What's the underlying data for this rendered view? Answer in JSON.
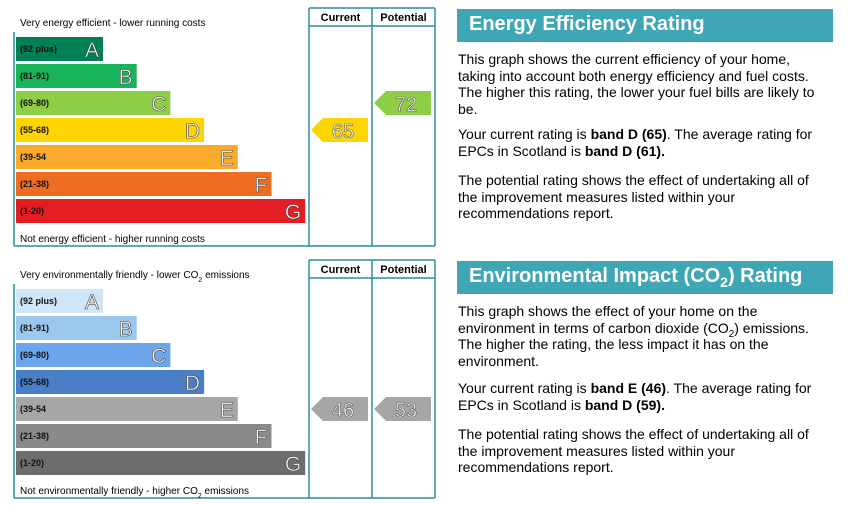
{
  "energy_graph": {
    "header_current": "Current",
    "header_potential": "Potential",
    "top_note": [
      {
        "text": "Very energy efficient - lower running costs"
      }
    ],
    "bottom_note": [
      {
        "text": "Not energy efficient - higher running costs"
      }
    ],
    "bands": [
      {
        "range": "(92 plus)",
        "letter": "A",
        "color": "#008054"
      },
      {
        "range": "(81-91)",
        "letter": "B",
        "color": "#19b459"
      },
      {
        "range": "(69-80)",
        "letter": "C",
        "color": "#8dce46"
      },
      {
        "range": "(55-68)",
        "letter": "D",
        "color": "#ffd500"
      },
      {
        "range": "(39-54",
        "letter": "E",
        "color": "#fcaa2c"
      },
      {
        "range": "(21-38)",
        "letter": "F",
        "color": "#ef6d23"
      },
      {
        "range": "(1-20)",
        "letter": "G",
        "color": "#e31d23"
      }
    ],
    "current": 65,
    "potential": 72,
    "current_color": "#ffd500",
    "potential_color": "#8dce46"
  },
  "environment_graph": {
    "header_current": "Current",
    "header_potential": "Potential",
    "top_note": [
      {
        "text": "Very environmentally friendly - lower CO"
      },
      {
        "text": "2",
        "sub": true
      },
      {
        "text": " emissions"
      }
    ],
    "bottom_note": [
      {
        "text": "Not environmentally friendly - higher CO"
      },
      {
        "text": "2",
        "sub": true
      },
      {
        "text": " emissions"
      }
    ],
    "bands": [
      {
        "range": "(92 plus)",
        "letter": "A",
        "color": "#cfe5f8"
      },
      {
        "range": "(81-91)",
        "letter": "B",
        "color": "#9cc8f0"
      },
      {
        "range": "(69-80)",
        "letter": "C",
        "color": "#6ea6ee"
      },
      {
        "range": "(55-68)",
        "letter": "D",
        "color": "#4a7ec6"
      },
      {
        "range": "(39-54",
        "letter": "E",
        "color": "#a6a6a6"
      },
      {
        "range": "(21-38)",
        "letter": "F",
        "color": "#8a8a8a"
      },
      {
        "range": "(1-20)",
        "letter": "G",
        "color": "#6d6d6d"
      }
    ],
    "current": 46,
    "potential": 53,
    "current_color": "#a6a6a6",
    "potential_color": "#a6a6a6"
  },
  "energy_text": {
    "title": [
      {
        "text": "Energy Efficiency Rating"
      }
    ],
    "paragraphs": [
      [
        {
          "text": "This graph shows the current efficiency of your home, taking into account both energy efficiency and fuel costs. The higher this rating, the lower your fuel bills are likely to be."
        }
      ],
      [
        {
          "text": "Your current rating is "
        },
        {
          "text": "band D (65)",
          "bold": true
        },
        {
          "text": ". The average rating for EPCs in Scotland is "
        },
        {
          "text": "band D (61).",
          "bold": true
        }
      ],
      [
        {
          "text": "The potential rating shows the effect of undertaking all of the improvement measures listed within your recommendations report."
        }
      ]
    ]
  },
  "environment_text": {
    "title": [
      {
        "text": "Environmental Impact (CO"
      },
      {
        "text": "2",
        "sub": true
      },
      {
        "text": ") Rating"
      }
    ],
    "paragraphs": [
      [
        {
          "text": "This graph shows the effect of your home on the environment in terms of carbon dioxide (CO"
        },
        {
          "text": "2",
          "sub": true
        },
        {
          "text": ") emissions. The higher the rating, the less impact it has on the environment."
        }
      ],
      [
        {
          "text": "Your current rating is "
        },
        {
          "text": "band E (46)",
          "bold": true
        },
        {
          "text": ". The average rating for EPCs in Scotland is "
        },
        {
          "text": "band D (59).",
          "bold": true
        }
      ],
      [
        {
          "text": "The potential rating shows the effect of undertaking all of the improvement measures listed within your recommendations report."
        }
      ]
    ]
  }
}
